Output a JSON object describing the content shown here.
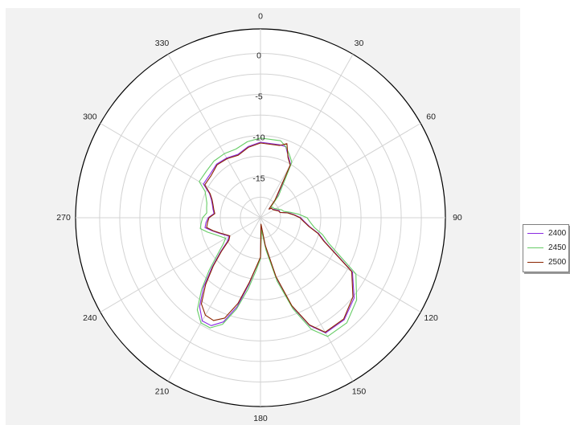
{
  "chart_data": {
    "type": "polar-line",
    "title": "",
    "angle_ticks": [
      "0",
      "30",
      "60",
      "90",
      "120",
      "150",
      "180",
      "210",
      "240",
      "270",
      "300",
      "330"
    ],
    "radial_ticks": [
      "0",
      "-5",
      "-10",
      "-15"
    ],
    "radial_range": [
      -20,
      0
    ],
    "angle_direction": "clockwise",
    "zero_angle": "top",
    "grid": true,
    "legend_position": "right",
    "angles_deg": [
      0,
      15,
      20,
      25,
      30,
      40,
      45,
      50,
      55,
      60,
      70,
      75,
      80,
      85,
      90,
      95,
      100,
      105,
      110,
      120,
      130,
      140,
      150,
      155,
      160,
      165,
      170,
      175,
      180,
      185,
      190,
      195,
      200,
      205,
      210,
      215,
      220,
      225,
      230,
      235,
      240,
      250,
      255,
      260,
      265,
      270,
      275,
      280,
      285,
      290,
      295,
      300,
      310,
      320,
      330,
      340,
      350
    ],
    "series": [
      {
        "name": "2400",
        "color": "#8a2be2",
        "values": [
          -10.8,
          -10.8,
          -10.8,
          -11.8,
          -12.5,
          -17,
          -18.5,
          -18.2,
          -18.2,
          -18,
          -17.5,
          -17.5,
          -16.5,
          -15.8,
          -15,
          -14.5,
          -13.8,
          -12.5,
          -11.5,
          -6.8,
          -4.8,
          -3.8,
          -3.8,
          -5.5,
          -8.5,
          -12.5,
          -16.5,
          -19,
          -15,
          -14,
          -11.8,
          -8.8,
          -6.5,
          -5.5,
          -5.5,
          -6.8,
          -9,
          -11.5,
          -13.5,
          -15,
          -15.5,
          -14.5,
          -13.8,
          -13,
          -13.2,
          -13.5,
          -14.2,
          -14,
          -13.8,
          -13.5,
          -13,
          -11.8,
          -11.8,
          -11.5,
          -11.6,
          -11.8,
          -11.2
        ]
      },
      {
        "name": "2450",
        "color": "#66cc66",
        "values": [
          -10.3,
          -10.3,
          -10.8,
          -11.5,
          -12.2,
          -16.5,
          -18.2,
          -18,
          -18,
          -17.8,
          -17.2,
          -17,
          -16.2,
          -15.2,
          -14.2,
          -13.8,
          -13.2,
          -12,
          -11,
          -6.3,
          -4.4,
          -3.3,
          -3.3,
          -5,
          -8.2,
          -12,
          -16,
          -18.5,
          -15,
          -13.5,
          -11.2,
          -8.5,
          -6.2,
          -5.2,
          -5.2,
          -6.3,
          -8.6,
          -11,
          -13,
          -14.3,
          -15,
          -14,
          -13.2,
          -12.4,
          -12.6,
          -12.8,
          -13.3,
          -13.2,
          -13.1,
          -12.8,
          -12.4,
          -11.2,
          -11.2,
          -11,
          -11,
          -11.1,
          -10.6
        ]
      },
      {
        "name": "2500",
        "color": "#8b2500",
        "values": [
          -10.9,
          -10.9,
          -10.4,
          -11.9,
          -12.6,
          -17.2,
          -18.5,
          -18.2,
          -18.2,
          -18.1,
          -17.6,
          -17.5,
          -16.6,
          -15.9,
          -15.1,
          -14.6,
          -13.9,
          -12.6,
          -11.6,
          -6.9,
          -5,
          -3.9,
          -3.9,
          -5.6,
          -8.6,
          -12.6,
          -16.6,
          -19.2,
          -15.2,
          -14,
          -12,
          -9.2,
          -7,
          -6.2,
          -6.3,
          -7.2,
          -9.4,
          -11.7,
          -13.7,
          -15.2,
          -15.6,
          -14.6,
          -13.9,
          -13.2,
          -13.4,
          -13.6,
          -14.3,
          -14.1,
          -13.9,
          -13.6,
          -13.1,
          -12,
          -12,
          -11.6,
          -11.7,
          -11.9,
          -11.3
        ]
      }
    ]
  }
}
